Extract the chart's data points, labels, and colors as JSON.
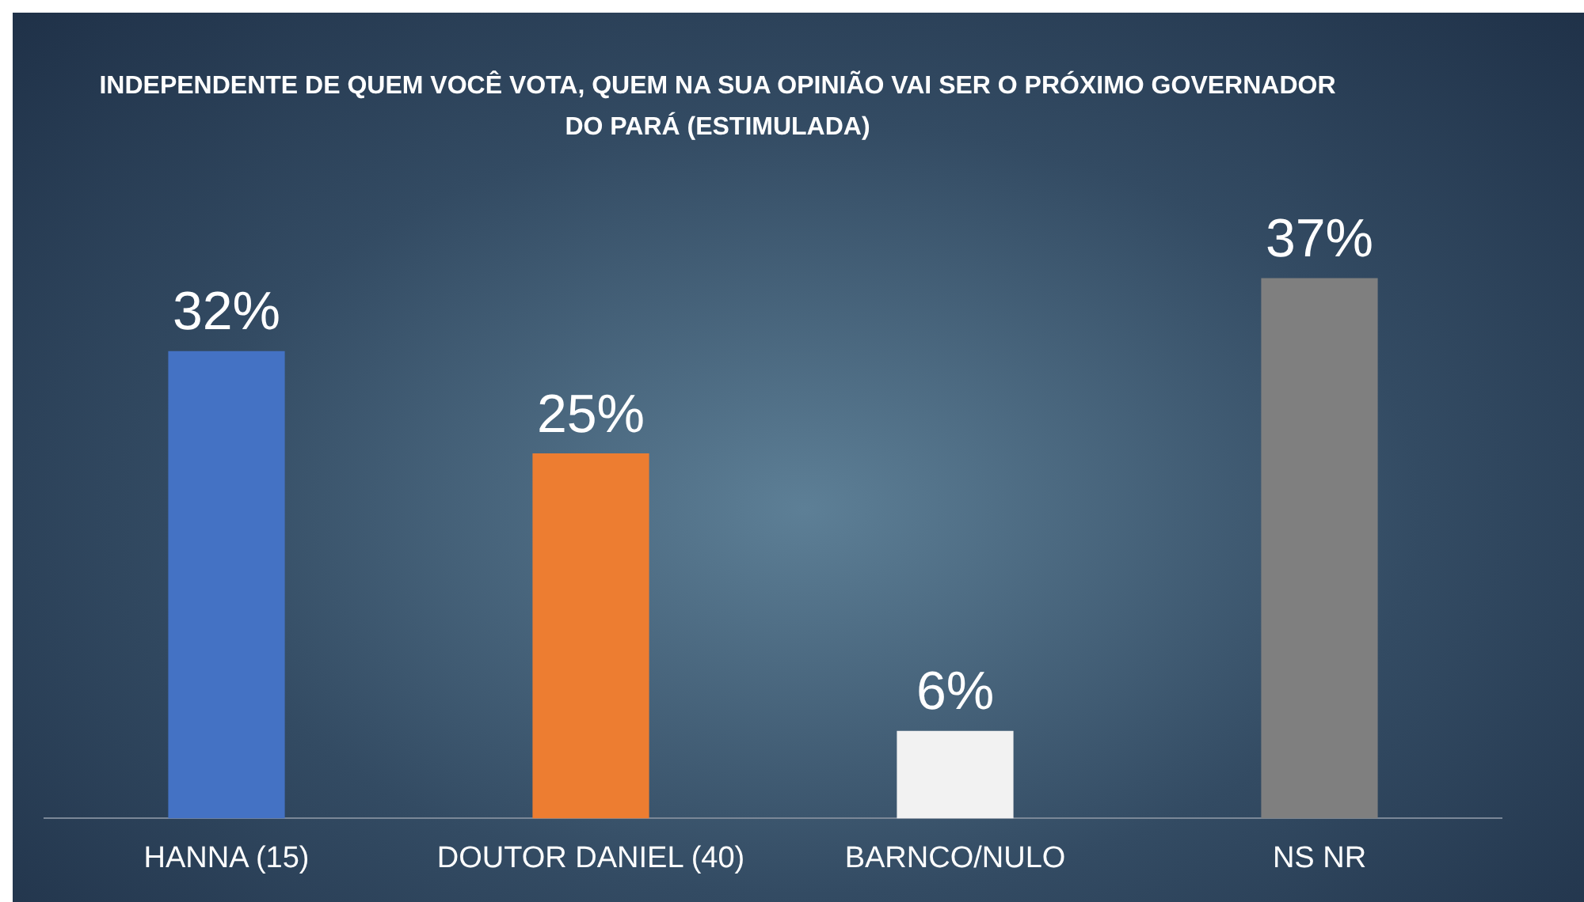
{
  "chart_data": {
    "type": "bar",
    "title": "INDEPENDENTE DE QUEM VOCÊ VOTA, QUEM NA SUA OPINIÃO VAI SER O PRÓXIMO GOVERNADOR DO PARÁ (ESTIMULADA)",
    "categories": [
      "HANNA (15)",
      "DOUTOR DANIEL (40)",
      "BARNCO/NULO",
      "NS NR"
    ],
    "values": [
      32,
      25,
      6,
      37
    ],
    "colors": [
      "#4472c4",
      "#ed7d31",
      "#f2f2f2",
      "#7f7f7f"
    ],
    "value_labels": [
      "32%",
      "25%",
      "6%",
      "37%"
    ],
    "grid": false,
    "legend": false
  }
}
